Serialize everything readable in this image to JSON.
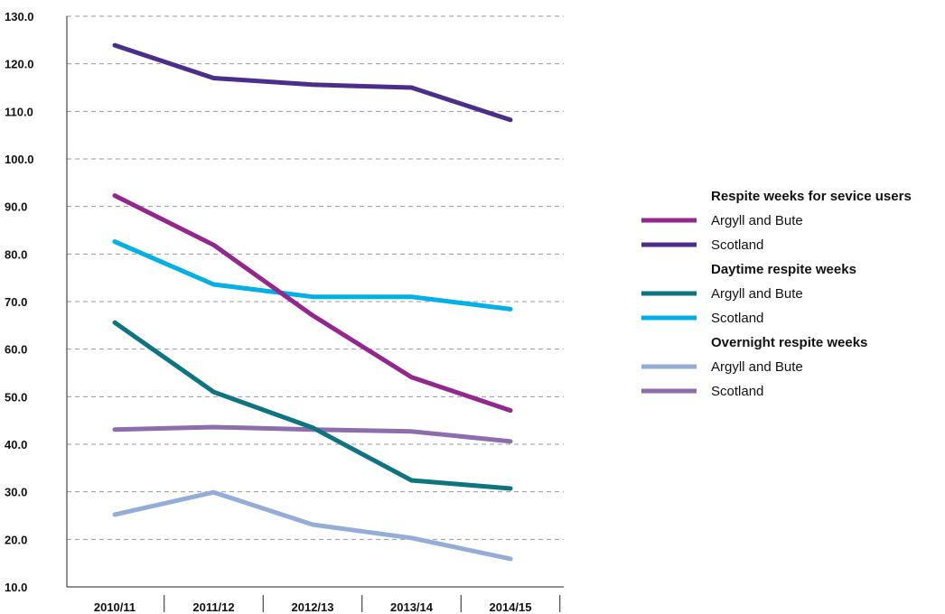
{
  "chart_data": {
    "type": "line",
    "title": "",
    "xlabel": "",
    "ylabel": "",
    "categories": [
      "2010/11",
      "2011/12",
      "2012/13",
      "2013/14",
      "2014/15"
    ],
    "ylim": [
      10,
      130
    ],
    "yticks": [
      10,
      20,
      30,
      40,
      50,
      60,
      70,
      80,
      90,
      100,
      110,
      120,
      130
    ],
    "ytick_labels": [
      "10.0",
      "20.0",
      "30.0",
      "40.0",
      "50.0",
      "60.0",
      "70.0",
      "80.0",
      "90.0",
      "100.0",
      "110.0",
      "120.0",
      "130.0"
    ],
    "grid": true,
    "legend_position": "right",
    "legend_groups": [
      {
        "heading": "Respite weeks for sevice users",
        "series": [
          {
            "name": "Argyll and Bute",
            "color": "#93278f",
            "values": [
              92.3,
              81.9,
              67.1,
              54.1,
              47.1
            ]
          },
          {
            "name": "Scotland",
            "color": "#4b2e8c",
            "values": [
              123.9,
              117.0,
              115.6,
              115.0,
              108.2
            ]
          }
        ]
      },
      {
        "heading": "Daytime respite weeks",
        "series": [
          {
            "name": "Argyll and Bute",
            "color": "#0e7580",
            "values": [
              65.6,
              51.0,
              43.5,
              32.4,
              30.7
            ]
          },
          {
            "name": "Scotland",
            "color": "#00b0e6",
            "values": [
              82.6,
              73.6,
              71.0,
              71.0,
              68.4
            ]
          }
        ]
      },
      {
        "heading": "Overnight respite weeks",
        "series": [
          {
            "name": "Argyll and Bute",
            "color": "#93acd8",
            "values": [
              25.2,
              29.9,
              23.1,
              20.3,
              15.9
            ]
          },
          {
            "name": "Scotland",
            "color": "#8e6cad",
            "values": [
              43.1,
              43.6,
              43.1,
              42.7,
              40.6
            ]
          }
        ]
      }
    ]
  }
}
